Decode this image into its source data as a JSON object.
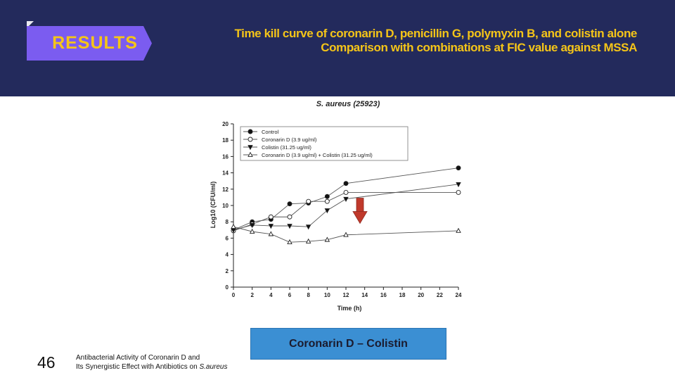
{
  "header": {
    "tag_label": "RESULTS",
    "title_line1": "Time kill curve of coronarin D, penicillin G, polymyxin B, and colistin alone",
    "title_line2": "Comparison with combinations at FIC value against MSSA",
    "colors": {
      "band": "#232a5c",
      "tag": "#7b5cf0",
      "title": "#f5c518"
    }
  },
  "chart_data": {
    "type": "line",
    "title": "S. aureus (25923)",
    "xlabel": "Time (h)",
    "ylabel": "Log10 (CFU/ml)",
    "xlim": [
      0,
      24
    ],
    "ylim": [
      0,
      20
    ],
    "xticks": [
      0,
      2,
      4,
      6,
      8,
      10,
      12,
      14,
      16,
      18,
      20,
      22,
      24
    ],
    "yticks": [
      0,
      2,
      4,
      6,
      8,
      10,
      12,
      14,
      16,
      18,
      20
    ],
    "grid": false,
    "legend_position": "top-left",
    "series": [
      {
        "name": "Control",
        "marker": "filled-circle",
        "x": [
          0,
          2,
          4,
          6,
          8,
          10,
          12,
          24
        ],
        "y": [
          7.0,
          8.0,
          8.3,
          10.2,
          10.3,
          11.1,
          12.7,
          14.6
        ]
      },
      {
        "name": "Coronarin D (3.9 ug/ml)",
        "marker": "open-circle",
        "x": [
          0,
          2,
          4,
          6,
          8,
          10,
          12,
          24
        ],
        "y": [
          6.9,
          7.7,
          8.6,
          8.6,
          10.5,
          10.5,
          11.6,
          11.6
        ]
      },
      {
        "name": "Colistin (31.25 ug/ml)",
        "marker": "filled-triangle-down",
        "x": [
          0,
          2,
          4,
          6,
          8,
          10,
          12,
          24
        ],
        "y": [
          7.0,
          7.6,
          7.5,
          7.5,
          7.4,
          9.4,
          10.8,
          12.6
        ]
      },
      {
        "name": "Coronarin D (3.9 ug/ml) + Colistin (31.25 ug/ml)",
        "marker": "open-triangle-up",
        "x": [
          0,
          2,
          4,
          6,
          8,
          10,
          12,
          24
        ],
        "y": [
          7.4,
          6.8,
          6.5,
          5.5,
          5.6,
          5.8,
          6.4,
          6.9
        ]
      }
    ],
    "annotations": [
      {
        "type": "arrow-down",
        "color": "#c0392b",
        "x": 13.5,
        "y": 7.8
      }
    ]
  },
  "callout": {
    "label": "Coronarin D – Colistin",
    "color": "#3b8fd3"
  },
  "footer": {
    "slide_number": "46",
    "line1": "Antibacterial Activity of Coronarin D and",
    "line2_prefix": "Its Synergistic Effect with Antibiotics on ",
    "line2_italic": "S.aureus"
  }
}
